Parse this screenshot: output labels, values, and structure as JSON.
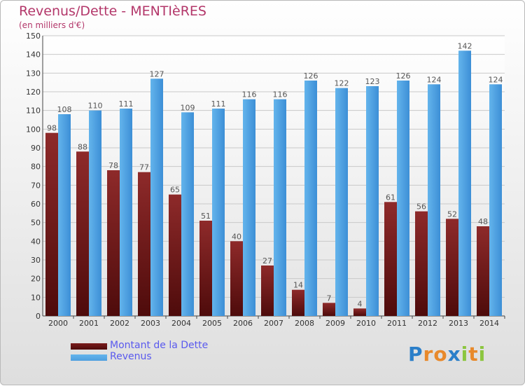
{
  "chart_data": {
    "type": "bar",
    "title": "Revenus/Dette - MENTIèRES",
    "subtitle": "(en milliers d'€)",
    "categories": [
      "2000",
      "2001",
      "2002",
      "2003",
      "2004",
      "2005",
      "2006",
      "2007",
      "2008",
      "2009",
      "2010",
      "2011",
      "2012",
      "2013",
      "2014"
    ],
    "series": [
      {
        "name": "Montant de la Dette",
        "color": "#7a1c1c",
        "values": [
          98,
          88,
          78,
          77,
          65,
          51,
          40,
          27,
          14,
          7,
          4,
          61,
          56,
          52,
          48
        ]
      },
      {
        "name": "Revenus",
        "color": "#4f9fdf",
        "values": [
          108,
          110,
          111,
          127,
          109,
          111,
          116,
          116,
          126,
          122,
          123,
          126,
          124,
          142,
          124
        ]
      }
    ],
    "yticks": [
      0,
      10,
      20,
      30,
      40,
      50,
      60,
      70,
      80,
      90,
      100,
      110,
      120,
      130,
      140,
      150
    ],
    "ylim": [
      0,
      150
    ],
    "grid": true,
    "legend_position": "bottom-left"
  },
  "logo": {
    "letters": [
      {
        "ch": "P",
        "color": "#2b7fc9"
      },
      {
        "ch": "r",
        "color": "#e8892b"
      },
      {
        "ch": "o",
        "color": "#e8892b"
      },
      {
        "ch": "x",
        "color": "#2b7fc9"
      },
      {
        "ch": "i",
        "color": "#8cc63f"
      },
      {
        "ch": "t",
        "color": "#e8892b"
      },
      {
        "ch": "i",
        "color": "#8cc63f"
      }
    ]
  }
}
